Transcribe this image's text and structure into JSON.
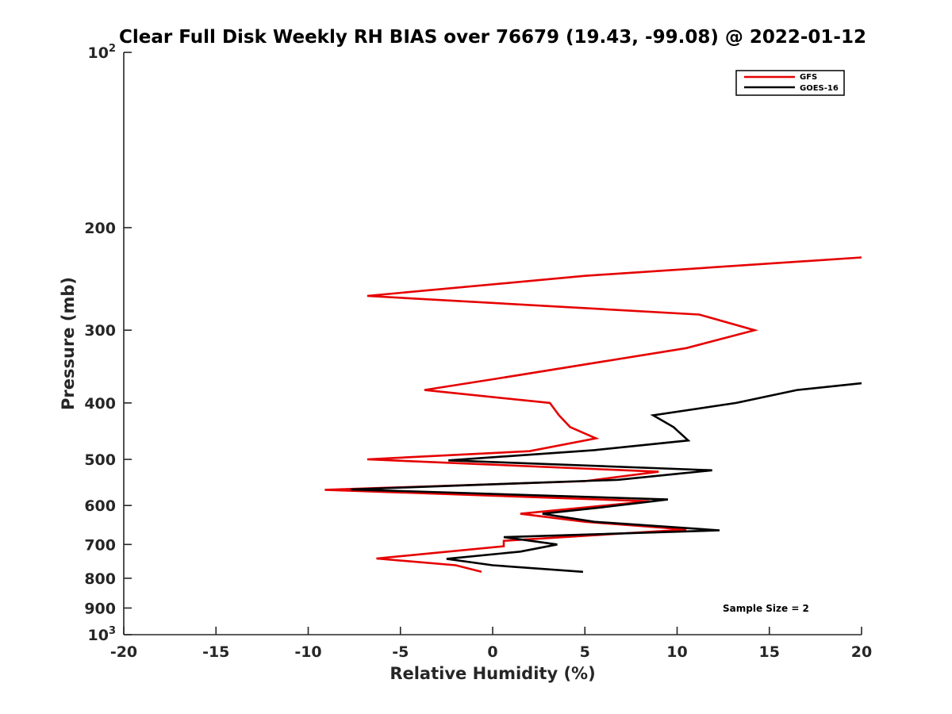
{
  "chart_data": {
    "type": "line",
    "title": "Clear Full Disk Weekly RH BIAS over 76679 (19.43, -99.08) @ 2022-01-12",
    "xlabel": "Relative Humidity (%)",
    "ylabel": "Pressure (mb)",
    "xlim": [
      -20,
      20
    ],
    "ylim": [
      100,
      1000
    ],
    "y_scale": "log",
    "y_direction": "reversed",
    "x_ticks": [
      "-20",
      "-15",
      "-10",
      "-5",
      "0",
      "5",
      "10",
      "15",
      "20"
    ],
    "y_ticks": [
      {
        "value": 100,
        "base": "10",
        "exp": "2"
      },
      {
        "value": 200,
        "label": "200"
      },
      {
        "value": 300,
        "label": "300"
      },
      {
        "value": 400,
        "label": "400"
      },
      {
        "value": 500,
        "label": "500"
      },
      {
        "value": 600,
        "label": "600"
      },
      {
        "value": 700,
        "label": "700"
      },
      {
        "value": 800,
        "label": "800"
      },
      {
        "value": 900,
        "label": "900"
      },
      {
        "value": 1000,
        "base": "10",
        "exp": "3"
      }
    ],
    "grid": false,
    "legend_position": "top-right",
    "annotation": "Sample Size = 2",
    "series": [
      {
        "name": "GFS",
        "color": "#e60000",
        "points": [
          [
            20.0,
            225
          ],
          [
            5.0,
            242
          ],
          [
            -6.8,
            262
          ],
          [
            11.2,
            282
          ],
          [
            14.2,
            300
          ],
          [
            10.5,
            322
          ],
          [
            0.3,
            363
          ],
          [
            -3.7,
            380
          ],
          [
            3.1,
            400
          ],
          [
            3.6,
            420
          ],
          [
            4.2,
            440
          ],
          [
            5.6,
            460
          ],
          [
            2.0,
            484
          ],
          [
            -6.8,
            500
          ],
          [
            9.0,
            525
          ],
          [
            5.0,
            545
          ],
          [
            -9.1,
            564
          ],
          [
            8.5,
            590
          ],
          [
            1.5,
            620
          ],
          [
            5.0,
            640
          ],
          [
            10.5,
            660
          ],
          [
            0.6,
            690
          ],
          [
            0.6,
            705
          ],
          [
            -6.3,
            740
          ],
          [
            -2.0,
            760
          ],
          [
            -0.6,
            780
          ]
        ]
      },
      {
        "name": "GOES-16",
        "color": "#000000",
        "points": [
          [
            20.0,
            370
          ],
          [
            16.5,
            380
          ],
          [
            13.2,
            400
          ],
          [
            8.7,
            420
          ],
          [
            9.8,
            440
          ],
          [
            10.6,
            464
          ],
          [
            5.5,
            482
          ],
          [
            -2.4,
            502
          ],
          [
            11.9,
            522
          ],
          [
            6.8,
            542
          ],
          [
            -7.7,
            563
          ],
          [
            9.5,
            586
          ],
          [
            6.0,
            604
          ],
          [
            2.7,
            620
          ],
          [
            5.5,
            640
          ],
          [
            12.3,
            662
          ],
          [
            0.6,
            680
          ],
          [
            3.5,
            700
          ],
          [
            1.5,
            720
          ],
          [
            -2.5,
            741
          ],
          [
            0.0,
            760
          ],
          [
            4.9,
            780
          ]
        ]
      }
    ]
  }
}
